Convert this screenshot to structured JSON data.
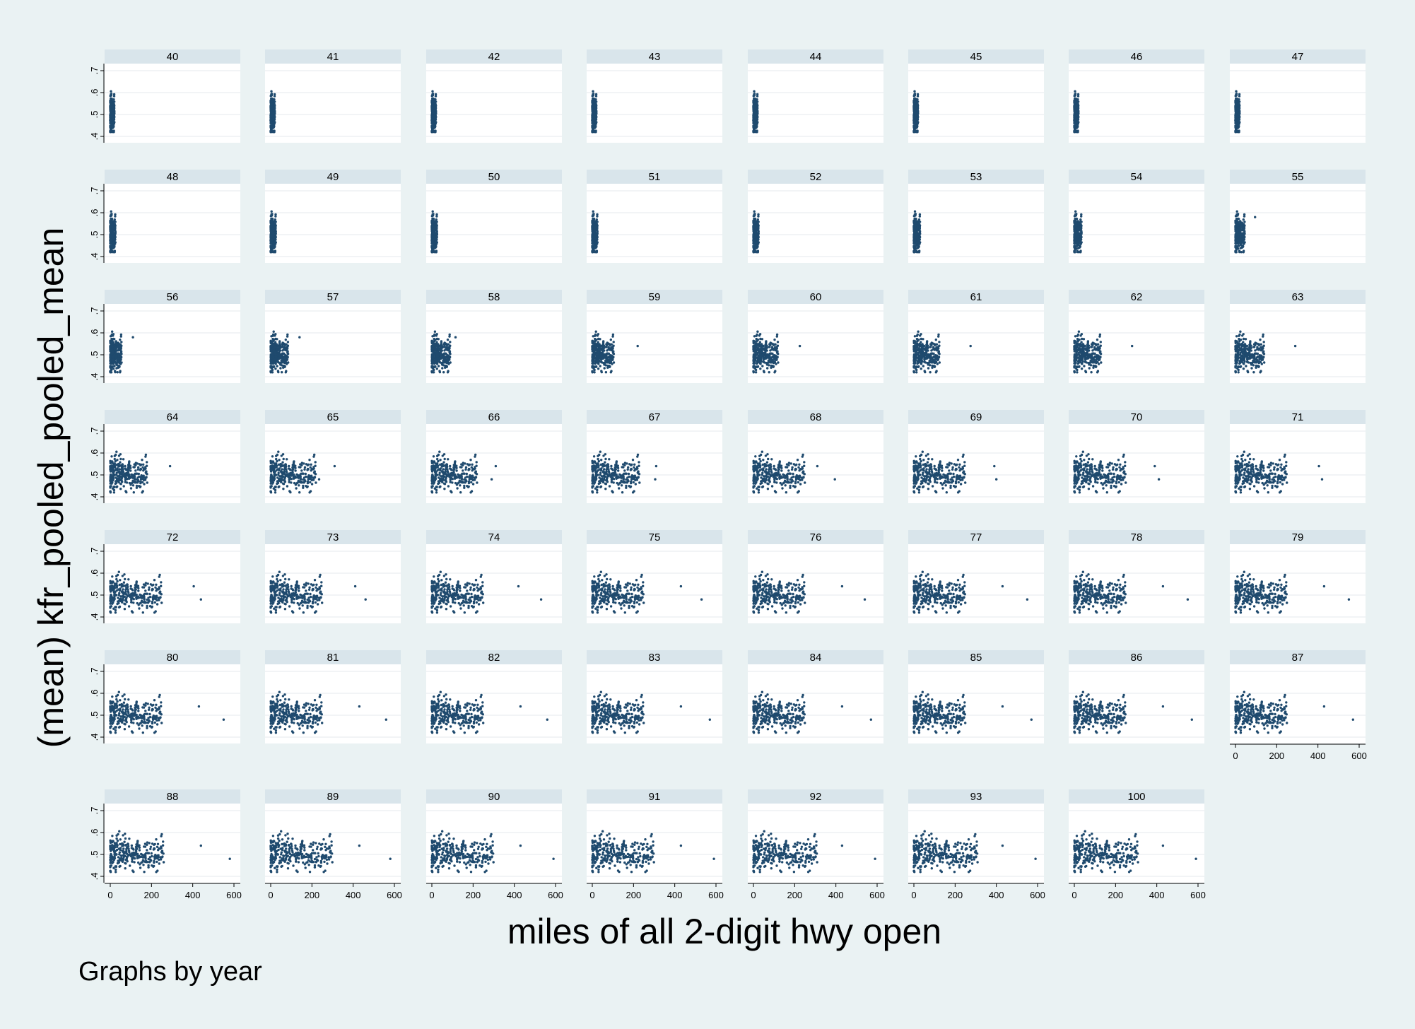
{
  "ylabel": "(mean) kfr_pooled_pooled_mean",
  "xlabel": "miles of all 2-digit hwy open",
  "note": "Graphs by year",
  "colors": {
    "marker": "#1f4a6e",
    "background": "#eaf2f3",
    "strip": "#d9e5eb",
    "plot": "#ffffff",
    "grid": "#e4e9ec"
  },
  "chart_data": {
    "type": "scatter",
    "by": "year",
    "xlim": [
      0,
      600
    ],
    "ylim": [
      0.4,
      0.7
    ],
    "xticks": [
      "0",
      "200",
      "400",
      "600"
    ],
    "yticks": [
      ".4",
      ".5",
      ".6",
      ".7"
    ],
    "grid": true,
    "point_count": 300,
    "panels": [
      {
        "year": "40",
        "x_max": 20,
        "out": []
      },
      {
        "year": "41",
        "x_max": 20,
        "out": [
          [
            10,
            0.57
          ],
          [
            15,
            0.56
          ]
        ]
      },
      {
        "year": "42",
        "x_max": 20,
        "out": [
          [
            10,
            0.57
          ],
          [
            15,
            0.56
          ]
        ]
      },
      {
        "year": "43",
        "x_max": 20,
        "out": [
          [
            10,
            0.57
          ],
          [
            15,
            0.56
          ]
        ]
      },
      {
        "year": "44",
        "x_max": 20,
        "out": [
          [
            10,
            0.57
          ],
          [
            15,
            0.56
          ],
          [
            5,
            0.51
          ]
        ]
      },
      {
        "year": "45",
        "x_max": 20,
        "out": [
          [
            10,
            0.57
          ],
          [
            15,
            0.56
          ]
        ]
      },
      {
        "year": "46",
        "x_max": 20,
        "out": [
          [
            10,
            0.57
          ],
          [
            15,
            0.56
          ]
        ]
      },
      {
        "year": "47",
        "x_max": 20,
        "out": [
          [
            10,
            0.57
          ],
          [
            15,
            0.56
          ],
          [
            5,
            0.51
          ]
        ]
      },
      {
        "year": "48",
        "x_max": 25,
        "out": [
          [
            20,
            0.56
          ],
          [
            25,
            0.51
          ]
        ]
      },
      {
        "year": "49",
        "x_max": 25,
        "out": [
          [
            20,
            0.56
          ],
          [
            20,
            0.51
          ]
        ]
      },
      {
        "year": "50",
        "x_max": 25,
        "out": [
          [
            20,
            0.56
          ],
          [
            25,
            0.5
          ]
        ]
      },
      {
        "year": "51",
        "x_max": 25,
        "out": [
          [
            20,
            0.56
          ],
          [
            20,
            0.5
          ]
        ]
      },
      {
        "year": "52",
        "x_max": 25,
        "out": [
          [
            20,
            0.56
          ],
          [
            20,
            0.5
          ]
        ]
      },
      {
        "year": "53",
        "x_max": 30,
        "out": [
          [
            25,
            0.56
          ],
          [
            20,
            0.5
          ]
        ]
      },
      {
        "year": "54",
        "x_max": 35,
        "out": [
          [
            30,
            0.56
          ],
          [
            35,
            0.51
          ]
        ]
      },
      {
        "year": "55",
        "x_max": 45,
        "out": [
          [
            95,
            0.58
          ]
        ]
      },
      {
        "year": "56",
        "x_max": 55,
        "out": [
          [
            110,
            0.58
          ]
        ]
      },
      {
        "year": "57",
        "x_max": 85,
        "out": [
          [
            140,
            0.58
          ]
        ]
      },
      {
        "year": "58",
        "x_max": 90,
        "out": [
          [
            115,
            0.58
          ]
        ]
      },
      {
        "year": "59",
        "x_max": 105,
        "out": [
          [
            220,
            0.54
          ]
        ]
      },
      {
        "year": "60",
        "x_max": 120,
        "out": [
          [
            225,
            0.54
          ]
        ]
      },
      {
        "year": "61",
        "x_max": 125,
        "out": [
          [
            275,
            0.54
          ]
        ]
      },
      {
        "year": "62",
        "x_max": 130,
        "out": [
          [
            280,
            0.54
          ]
        ]
      },
      {
        "year": "63",
        "x_max": 140,
        "out": [
          [
            290,
            0.54
          ]
        ]
      },
      {
        "year": "64",
        "x_max": 180,
        "out": [
          [
            290,
            0.54
          ]
        ]
      },
      {
        "year": "65",
        "x_max": 220,
        "out": [
          [
            310,
            0.54
          ],
          [
            235,
            0.48
          ]
        ]
      },
      {
        "year": "66",
        "x_max": 220,
        "out": [
          [
            310,
            0.54
          ],
          [
            290,
            0.48
          ]
        ]
      },
      {
        "year": "67",
        "x_max": 230,
        "out": [
          [
            310,
            0.54
          ],
          [
            305,
            0.48
          ]
        ]
      },
      {
        "year": "68",
        "x_max": 250,
        "out": [
          [
            310,
            0.54
          ],
          [
            395,
            0.48
          ]
        ]
      },
      {
        "year": "69",
        "x_max": 250,
        "out": [
          [
            390,
            0.54
          ],
          [
            400,
            0.48
          ]
        ]
      },
      {
        "year": "70",
        "x_max": 250,
        "out": [
          [
            390,
            0.54
          ],
          [
            410,
            0.48
          ]
        ]
      },
      {
        "year": "71",
        "x_max": 250,
        "out": [
          [
            405,
            0.54
          ],
          [
            420,
            0.48
          ]
        ]
      },
      {
        "year": "72",
        "x_max": 250,
        "out": [
          [
            405,
            0.54
          ],
          [
            440,
            0.48
          ]
        ]
      },
      {
        "year": "73",
        "x_max": 250,
        "out": [
          [
            410,
            0.54
          ],
          [
            460,
            0.48
          ]
        ]
      },
      {
        "year": "74",
        "x_max": 250,
        "out": [
          [
            420,
            0.54
          ],
          [
            530,
            0.48
          ]
        ]
      },
      {
        "year": "75",
        "x_max": 250,
        "out": [
          [
            430,
            0.54
          ],
          [
            530,
            0.48
          ]
        ]
      },
      {
        "year": "76",
        "x_max": 250,
        "out": [
          [
            430,
            0.54
          ],
          [
            540,
            0.48
          ]
        ]
      },
      {
        "year": "77",
        "x_max": 250,
        "out": [
          [
            430,
            0.54
          ],
          [
            550,
            0.48
          ]
        ]
      },
      {
        "year": "78",
        "x_max": 250,
        "out": [
          [
            430,
            0.54
          ],
          [
            550,
            0.48
          ]
        ]
      },
      {
        "year": "79",
        "x_max": 250,
        "out": [
          [
            430,
            0.54
          ],
          [
            550,
            0.48
          ]
        ]
      },
      {
        "year": "80",
        "x_max": 250,
        "out": [
          [
            430,
            0.54
          ],
          [
            550,
            0.48
          ]
        ]
      },
      {
        "year": "81",
        "x_max": 250,
        "out": [
          [
            430,
            0.54
          ],
          [
            560,
            0.48
          ]
        ]
      },
      {
        "year": "82",
        "x_max": 250,
        "out": [
          [
            430,
            0.54
          ],
          [
            560,
            0.48
          ]
        ]
      },
      {
        "year": "83",
        "x_max": 250,
        "out": [
          [
            430,
            0.54
          ],
          [
            570,
            0.48
          ]
        ]
      },
      {
        "year": "84",
        "x_max": 250,
        "out": [
          [
            430,
            0.54
          ],
          [
            570,
            0.48
          ]
        ]
      },
      {
        "year": "85",
        "x_max": 250,
        "out": [
          [
            430,
            0.54
          ],
          [
            570,
            0.48
          ]
        ]
      },
      {
        "year": "86",
        "x_max": 250,
        "out": [
          [
            430,
            0.54
          ],
          [
            570,
            0.48
          ]
        ]
      },
      {
        "year": "87",
        "x_max": 250,
        "out": [
          [
            430,
            0.54
          ],
          [
            570,
            0.48
          ]
        ]
      },
      {
        "year": "88",
        "x_max": 260,
        "out": [
          [
            440,
            0.54
          ],
          [
            580,
            0.48
          ]
        ]
      },
      {
        "year": "89",
        "x_max": 300,
        "out": [
          [
            430,
            0.54
          ],
          [
            580,
            0.48
          ]
        ]
      },
      {
        "year": "90",
        "x_max": 300,
        "out": [
          [
            430,
            0.54
          ],
          [
            590,
            0.48
          ]
        ]
      },
      {
        "year": "91",
        "x_max": 300,
        "out": [
          [
            430,
            0.54
          ],
          [
            590,
            0.48
          ]
        ]
      },
      {
        "year": "92",
        "x_max": 310,
        "out": [
          [
            430,
            0.54
          ],
          [
            590,
            0.48
          ]
        ]
      },
      {
        "year": "93",
        "x_max": 310,
        "out": [
          [
            430,
            0.54
          ],
          [
            590,
            0.48
          ]
        ]
      },
      {
        "year": "100",
        "x_max": 310,
        "out": [
          [
            430,
            0.54
          ],
          [
            590,
            0.48
          ]
        ]
      }
    ]
  }
}
